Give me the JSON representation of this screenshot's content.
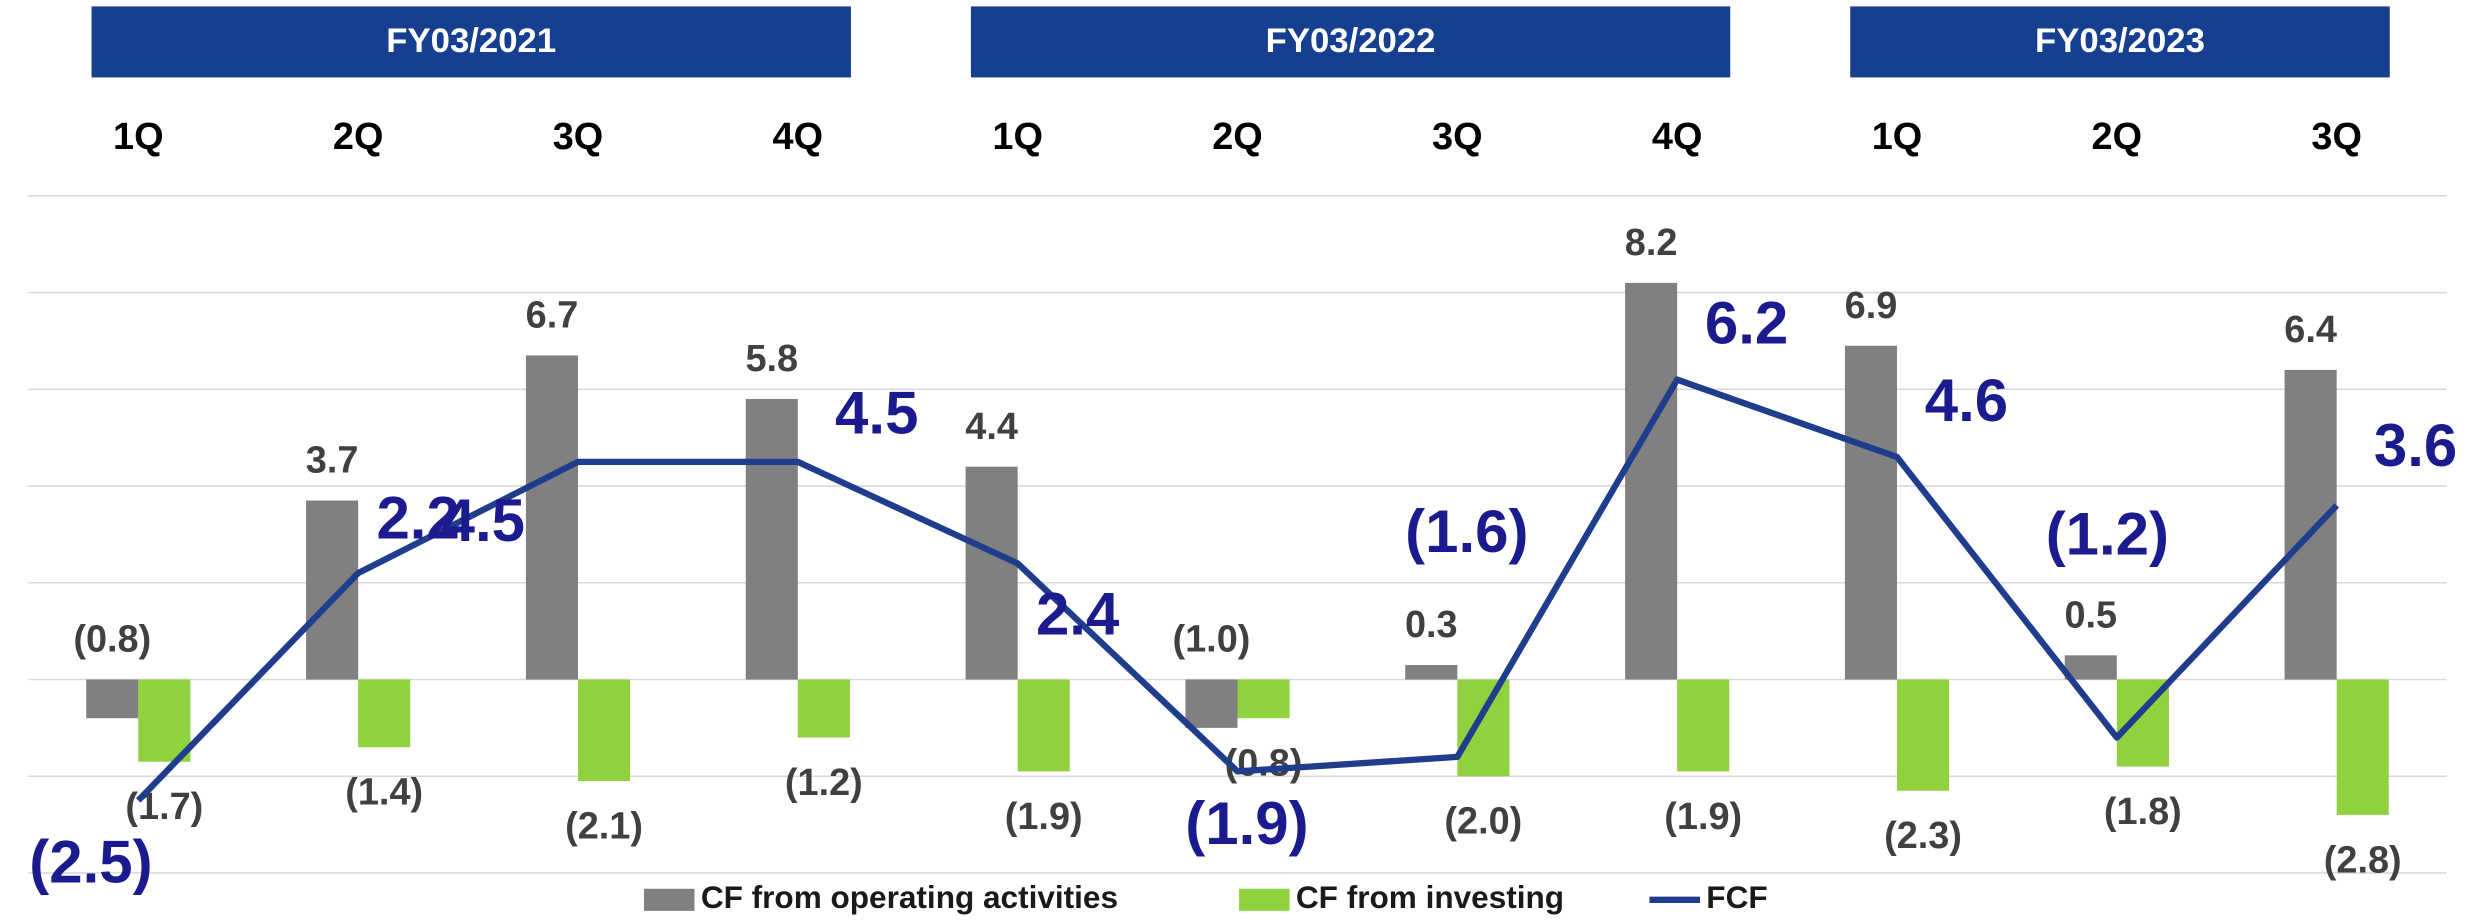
{
  "chart_data": {
    "type": "bar_line",
    "groups": [
      {
        "name": "FY03/2021",
        "categories": [
          "1Q",
          "2Q",
          "3Q",
          "4Q"
        ]
      },
      {
        "name": "FY03/2022",
        "categories": [
          "1Q",
          "2Q",
          "3Q",
          "4Q"
        ]
      },
      {
        "name": "FY03/2023",
        "categories": [
          "1Q",
          "2Q",
          "3Q"
        ]
      }
    ],
    "series": [
      {
        "name": "CF from operating activities",
        "type": "bar",
        "color": "#808080",
        "values": [
          -0.8,
          3.7,
          6.7,
          5.8,
          4.4,
          -1.0,
          0.3,
          8.2,
          6.9,
          0.5,
          6.4
        ],
        "value_labels": [
          "(0.8)",
          "3.7",
          "6.7",
          "5.8",
          "4.4",
          "(1.0)",
          "0.3",
          "8.2",
          "6.9",
          "0.5",
          "6.4"
        ]
      },
      {
        "name": "CF from investing",
        "type": "bar",
        "color": "#8fd13f",
        "values": [
          -1.7,
          -1.4,
          -2.1,
          -1.2,
          -1.9,
          -0.8,
          -2.0,
          -1.9,
          -2.3,
          -1.8,
          -2.8
        ],
        "value_labels": [
          "(1.7)",
          "(1.4)",
          "(2.1)",
          "(1.2)",
          "(1.9)",
          "(0.8)",
          "(2.0)",
          "(1.9)",
          "(2.3)",
          "(1.8)",
          "(2.8)"
        ]
      },
      {
        "name": "FCF",
        "type": "line",
        "color": "#1f3d8c",
        "values": [
          -2.5,
          2.2,
          4.5,
          4.5,
          2.4,
          -1.9,
          -1.6,
          6.2,
          4.6,
          -1.2,
          3.6
        ],
        "value_labels": [
          "(2.5)",
          "2.2",
          "4.5",
          "4.5",
          "2.4",
          "(1.9)",
          "(1.6)",
          "6.2",
          "4.6",
          "(1.2)",
          "3.6"
        ]
      }
    ],
    "ylim": [
      -4,
      10
    ],
    "yticks": [
      -4,
      -2,
      0,
      2,
      4,
      6,
      8,
      10
    ],
    "grid": true,
    "legend": "bottom"
  }
}
